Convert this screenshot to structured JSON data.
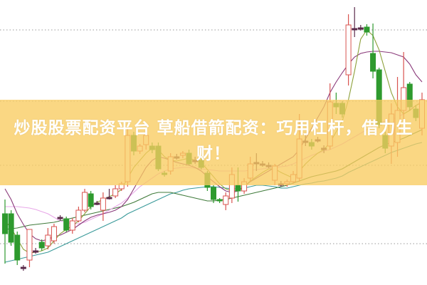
{
  "overlay_title": "炒股股票配资平台 草船借箭配资：巧用杠杆，借力生财！",
  "chart_data": {
    "type": "candlestick",
    "ylim": [
      0,
      40
    ],
    "grid": "horizontal-dotted",
    "colors": {
      "up": "#d9534f",
      "down": "#2e9a2e",
      "banner": "#f8cc60"
    },
    "candles": [
      [
        10.0,
        7.2,
        12.0,
        3.0
      ],
      [
        10.0,
        6.0,
        10.5,
        5.5
      ],
      [
        7.0,
        3.5,
        7.5,
        2.8
      ],
      [
        2.5,
        2.4,
        2.8,
        2.0
      ],
      [
        3.5,
        7.8,
        7.0,
        2.5
      ],
      [
        4.8,
        4.8,
        5.2,
        4.4
      ],
      [
        6.0,
        5.2,
        6.4,
        4.8
      ],
      [
        5.5,
        7.0,
        8.0,
        5.0
      ],
      [
        6.2,
        8.2,
        8.6,
        5.8
      ],
      [
        9.5,
        9.5,
        9.8,
        9.0
      ],
      [
        9.3,
        7.7,
        9.6,
        7.4
      ],
      [
        7.7,
        9.0,
        9.4,
        7.2
      ],
      [
        9.0,
        10.5,
        11.0,
        8.8
      ],
      [
        10.5,
        13.0,
        13.5,
        10.2
      ],
      [
        12.8,
        11.0,
        13.2,
        10.6
      ],
      [
        11.5,
        11.5,
        11.8,
        11.2
      ],
      [
        10.5,
        12.2,
        13.0,
        9.0
      ],
      [
        12.3,
        12.3,
        13.5,
        12.0
      ],
      [
        12.5,
        13.5,
        14.0,
        12.2
      ],
      [
        13.5,
        14.2,
        14.5,
        13.2
      ],
      [
        14.5,
        21.0,
        22.5,
        13.8
      ],
      [
        21.0,
        18.8,
        21.5,
        18.2
      ],
      [
        18.8,
        19.5,
        19.8,
        18.4
      ],
      [
        19.7,
        21.0,
        21.5,
        19.0
      ],
      [
        19.5,
        19.0,
        20.0,
        18.5
      ],
      [
        19.5,
        16.3,
        20.0,
        16.0
      ],
      [
        15.7,
        15.5,
        16.0,
        15.2
      ],
      [
        16.0,
        18.0,
        18.5,
        15.5
      ],
      [
        18.0,
        18.0,
        18.4,
        17.6
      ],
      [
        18.2,
        18.5,
        18.8,
        17.8
      ],
      [
        18.5,
        17.0,
        19.0,
        16.8
      ],
      [
        17.5,
        17.5,
        18.0,
        17.0
      ],
      [
        17.5,
        16.5,
        18.0,
        16.2
      ],
      [
        15.7,
        13.7,
        16.0,
        13.2
      ],
      [
        13.7,
        12.0,
        14.0,
        11.5
      ],
      [
        12.0,
        11.8,
        12.2,
        11.5
      ],
      [
        11.3,
        12.5,
        13.0,
        10.5
      ],
      [
        12.2,
        15.5,
        16.5,
        11.5
      ],
      [
        14.0,
        13.2,
        16.5,
        11.7
      ],
      [
        13.2,
        14.5,
        15.0,
        12.8
      ],
      [
        15.0,
        17.0,
        18.0,
        14.5
      ],
      [
        17.2,
        17.2,
        18.5,
        16.0
      ],
      [
        17.0,
        17.0,
        17.4,
        16.6
      ],
      [
        16.8,
        16.7,
        17.2,
        16.4
      ],
      [
        14.7,
        16.7,
        17.0,
        14.0
      ],
      [
        14.2,
        14.2,
        14.6,
        13.8
      ],
      [
        14.2,
        14.5,
        14.8,
        13.8
      ],
      [
        14.5,
        15.5,
        16.0,
        14.2
      ],
      [
        15.0,
        20.5,
        24.0,
        14.5
      ],
      [
        20.2,
        20.2,
        21.0,
        19.5
      ],
      [
        20.0,
        19.5,
        20.5,
        19.0
      ],
      [
        20.4,
        20.4,
        20.8,
        20.0
      ],
      [
        19.2,
        19.2,
        19.6,
        18.5
      ],
      [
        19.5,
        25.7,
        28.3,
        19.0
      ],
      [
        25.5,
        25.0,
        27.0,
        24.0
      ],
      [
        25.5,
        24.0,
        25.8,
        23.5
      ],
      [
        29.5,
        36.5,
        38.0,
        28.0
      ],
      [
        36.0,
        36.0,
        39.0,
        34.8
      ],
      [
        36.1,
        36.1,
        36.5,
        35.7
      ],
      [
        36.2,
        35.5,
        36.6,
        35.0
      ],
      [
        32.5,
        30.0,
        36.7,
        29.0
      ],
      [
        30.2,
        22.5,
        30.5,
        22.0
      ],
      [
        21.0,
        19.2,
        21.5,
        18.5
      ],
      [
        19.5,
        24.0,
        25.5,
        17.0
      ],
      [
        20.0,
        24.5,
        29.2,
        18.0
      ],
      [
        24.5,
        27.7,
        32.7,
        23.0
      ],
      [
        28.2,
        25.0,
        28.5,
        24.5
      ],
      [
        24.7,
        23.5,
        25.2,
        23.0
      ],
      [
        22.0,
        26.0,
        27.0,
        21.0
      ]
    ],
    "moving_averages": [
      {
        "color": "#3a9a9a",
        "values": [
          3.2,
          3.4,
          3.6,
          3.8,
          4.0,
          4.2,
          4.4,
          4.6,
          5.0,
          5.4,
          5.8,
          6.2,
          6.6,
          7.0,
          7.4,
          7.8,
          8.2,
          8.6,
          9.0,
          9.4,
          10.0,
          10.4,
          10.8,
          11.2,
          11.6,
          12.0,
          12.4,
          12.8,
          13.0,
          13.3,
          13.5,
          13.6,
          13.7,
          13.8,
          13.8,
          13.7,
          13.6,
          13.5,
          13.5,
          13.6,
          13.8,
          14.0,
          14.0,
          13.9,
          13.8,
          13.6,
          13.6,
          13.8,
          14.0,
          14.2,
          14.3,
          14.5,
          14.6,
          14.8,
          15.0,
          15.3,
          15.8,
          16.2,
          16.6,
          17.0,
          17.4,
          17.8,
          18.2,
          18.6,
          18.9,
          19.2,
          19.5,
          19.8,
          20.0
        ]
      },
      {
        "color": "#3f7a3a",
        "values": [
          7.8,
          7.9,
          8.0,
          8.2,
          8.4,
          8.5,
          8.6,
          8.7,
          8.8,
          9.0,
          9.2,
          9.4,
          9.6,
          9.8,
          10.0,
          10.2,
          10.4,
          10.6,
          10.8,
          11.0,
          11.3,
          11.6,
          12.0,
          12.4,
          12.8,
          13.0,
          13.0,
          13.0,
          12.8,
          12.6,
          12.4,
          12.2,
          12.0,
          11.8,
          11.8,
          11.9,
          12.0,
          12.2,
          12.4,
          12.6,
          12.8,
          13.0,
          13.2,
          13.4,
          13.6,
          13.8,
          14.0,
          14.3,
          14.6,
          14.9,
          15.2,
          15.4,
          15.6,
          15.8,
          16.0,
          16.3,
          16.8,
          17.3,
          17.8,
          18.3,
          18.8,
          19.3,
          19.7,
          20.0,
          20.3,
          20.6,
          21.0,
          21.4,
          21.8
        ]
      },
      {
        "color": "#e8a8e8",
        "values": [
          11.0,
          11.0,
          11.0,
          10.9,
          10.8,
          10.6,
          10.3,
          10.0,
          9.5,
          9.0,
          8.8,
          8.6,
          8.6,
          8.8,
          9.2,
          9.6,
          10.0,
          10.5,
          11.0,
          11.5,
          12.2,
          13.0,
          13.8,
          14.4,
          15.0,
          15.6,
          16.0,
          16.3,
          16.4,
          16.5,
          16.5,
          16.4,
          16.3,
          16.2,
          16.1,
          16.0,
          16.0,
          16.0,
          16.0,
          16.0,
          16.1,
          16.2,
          16.3,
          16.4,
          16.5,
          16.6,
          16.7,
          17.0,
          17.4,
          17.8,
          18.2,
          18.5,
          18.8,
          19.0,
          19.4,
          19.8,
          20.3,
          20.8,
          21.3,
          21.8,
          22.3,
          22.7,
          23.0,
          23.2,
          23.6,
          24.0,
          24.6,
          25.2,
          25.8
        ]
      },
      {
        "color": "#8a3a7a",
        "values": [
          13.5,
          12.0,
          10.0,
          8.5,
          7.2,
          6.5,
          6.2,
          6.4,
          6.8,
          7.0,
          7.4,
          7.8,
          8.4,
          9.0,
          9.5,
          9.8,
          10.0,
          10.2,
          10.5,
          11.0,
          12.0,
          13.5,
          15.0,
          16.5,
          17.5,
          18.0,
          17.8,
          17.5,
          17.2,
          17.0,
          16.8,
          16.5,
          16.0,
          15.2,
          14.5,
          13.8,
          13.2,
          13.0,
          13.2,
          13.8,
          14.5,
          15.0,
          15.5,
          16.0,
          16.5,
          17.0,
          17.5,
          18.0,
          19.0,
          20.5,
          22.0,
          23.5,
          25.0,
          27.0,
          28.5,
          29.8,
          31.0,
          32.0,
          32.5,
          32.7,
          32.8,
          32.8,
          32.7,
          32.6,
          32.3,
          32.0,
          31.0,
          29.5,
          28.5
        ]
      },
      {
        "color": "#8ca03a",
        "values": [
          9.0,
          8.0,
          6.5,
          5.0,
          4.5,
          4.6,
          4.8,
          5.2,
          6.2,
          7.2,
          7.8,
          8.3,
          9.0,
          10.0,
          11.0,
          11.6,
          12.0,
          12.4,
          12.8,
          13.4,
          15.0,
          16.5,
          17.5,
          18.5,
          19.2,
          19.0,
          18.0,
          17.5,
          17.4,
          17.6,
          17.8,
          17.5,
          17.2,
          16.2,
          15.2,
          14.2,
          13.5,
          13.2,
          13.3,
          13.8,
          14.6,
          15.2,
          15.8,
          16.3,
          16.3,
          15.8,
          15.4,
          15.0,
          16.0,
          17.0,
          17.8,
          18.5,
          19.0,
          20.0,
          21.5,
          23.0,
          26.0,
          30.0,
          34.5,
          35.8,
          35.0,
          33.0,
          30.0,
          27.0,
          25.0,
          24.0,
          24.5,
          25.2,
          25.6
        ]
      }
    ]
  }
}
